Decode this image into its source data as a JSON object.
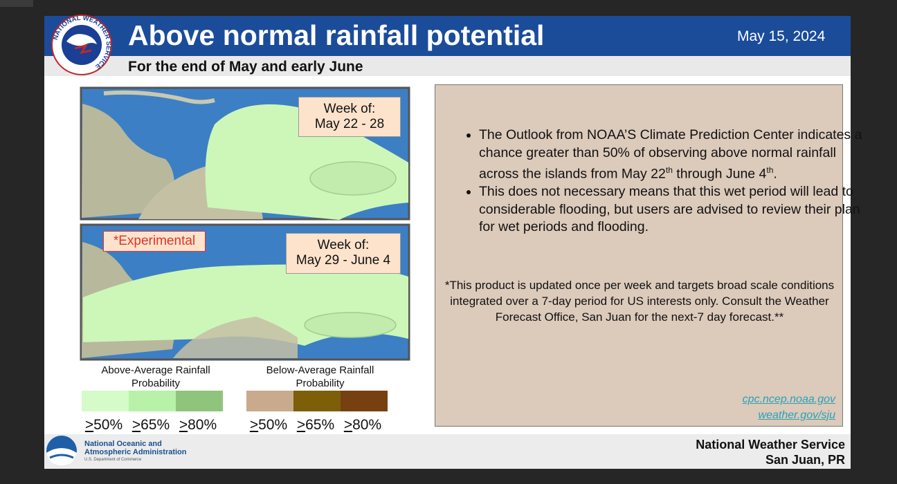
{
  "header": {
    "logo_text": "NATIONAL WEATHER SERVICE",
    "title": "Above normal rainfall potential",
    "date": "May 15, 2024",
    "subtitle": "For the end of May and early June"
  },
  "maps": [
    {
      "label_line1": "Week of:",
      "label_line2": "May 22 - 28"
    },
    {
      "tag": "*Experimental",
      "label_line1": "Week of:",
      "label_line2": "May 29 - June 4"
    }
  ],
  "legend": {
    "above": {
      "title": "Above-Average Rainfall Probability",
      "items": [
        {
          "symbol": ">",
          "value": "50%",
          "color": "#d4fbc8"
        },
        {
          "symbol": ">",
          "value": "65%",
          "color": "#b7f2a8"
        },
        {
          "symbol": ">",
          "value": "80%",
          "color": "#8fc47c"
        }
      ]
    },
    "below": {
      "title": "Below-Average Rainfall Probability",
      "items": [
        {
          "symbol": ">",
          "value": "50%",
          "color": "#c8aa8c"
        },
        {
          "symbol": ">",
          "value": "65%",
          "color": "#7d5f0a"
        },
        {
          "symbol": ">",
          "value": "80%",
          "color": "#774010"
        }
      ]
    }
  },
  "info": {
    "bullets": [
      [
        {
          "text": "The Outlook from NOAA’S Climate Prediction Center indicates a chance greater than 50% of observing above normal rainfall across the islands from May 22"
        },
        {
          "superscript": "th"
        },
        {
          "text": " through June 4"
        },
        {
          "superscript": "th"
        },
        {
          "text": "."
        }
      ],
      [
        {
          "text": "This does not necessary means that this wet period will lead to considerable flooding, but users are advised to review their plan for wet periods and flooding."
        }
      ]
    ],
    "note": "*This product is updated once per week and targets broad scale conditions integrated over a 7-day period for US interests only. Consult the Weather Forecast Office, San Juan for the next-7 day forecast.**",
    "links": [
      "cpc.ncep.noaa.gov",
      "weather.gov/sju"
    ]
  },
  "footer": {
    "noaa_line1": "National Oceanic and",
    "noaa_line2": "Atmospheric Administration",
    "noaa_line3": "U.S. Department of Commerce",
    "office_line1": "National Weather Service",
    "office_line2": "San Juan, PR"
  }
}
